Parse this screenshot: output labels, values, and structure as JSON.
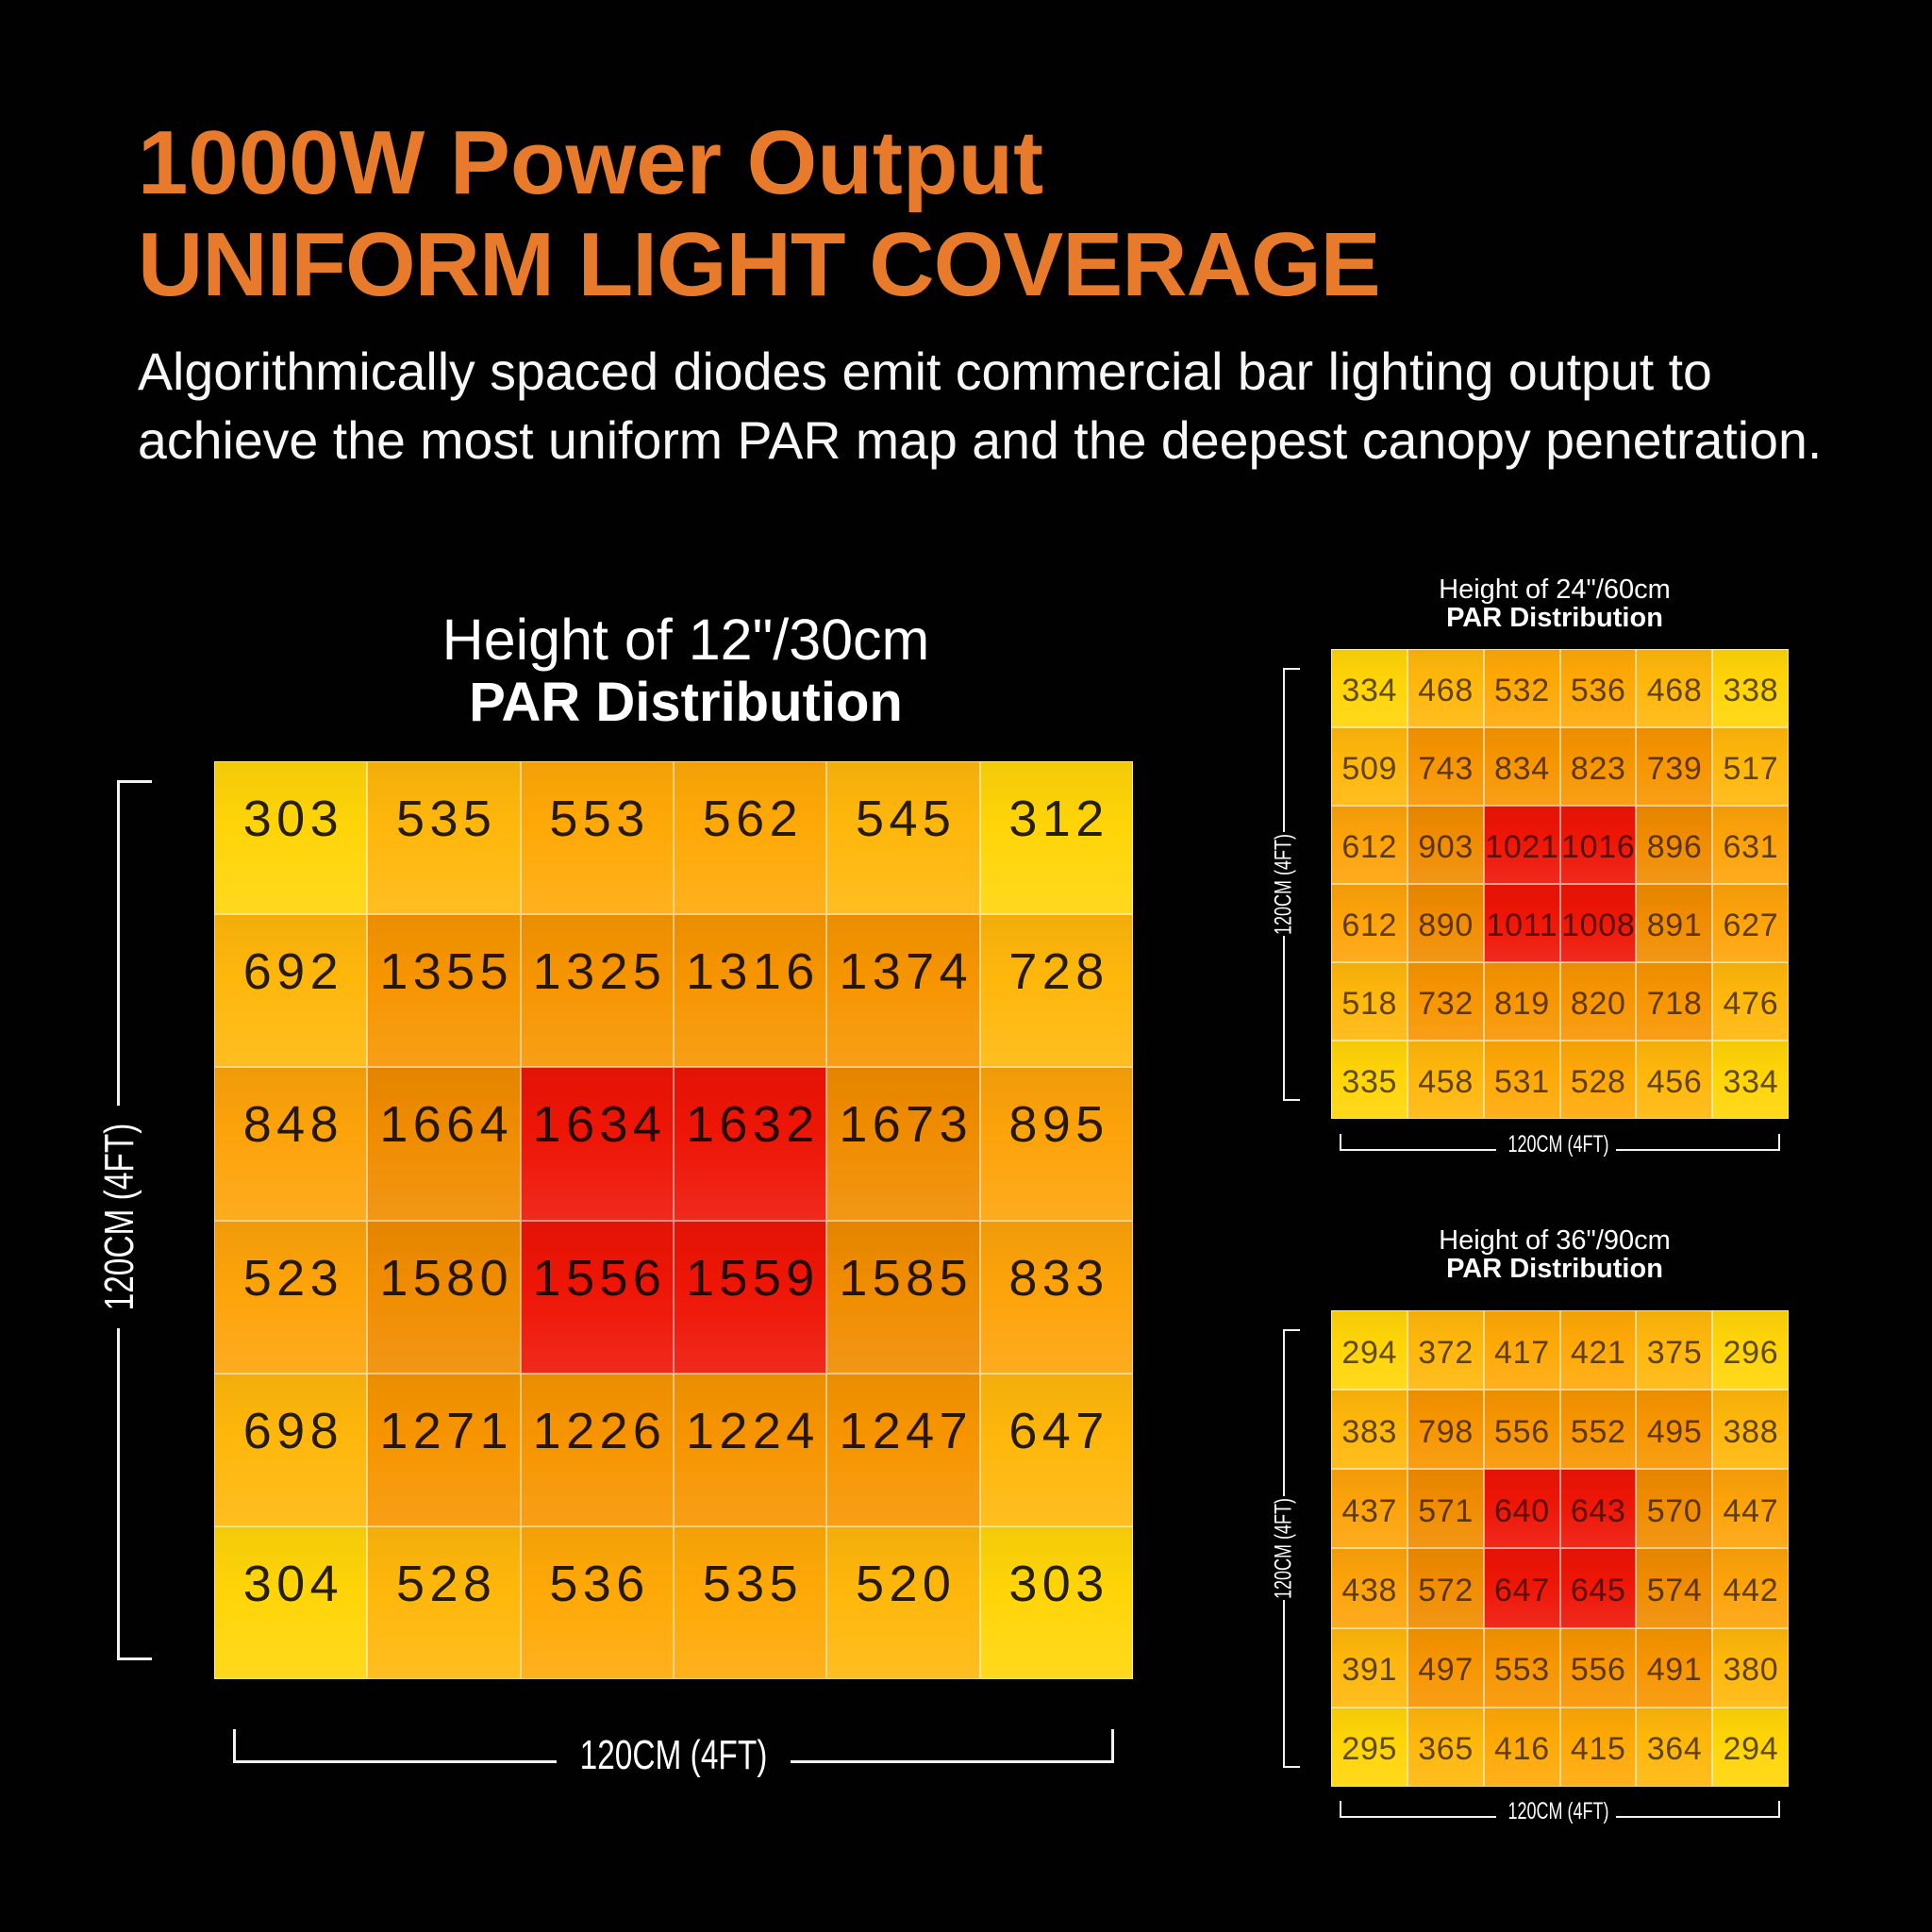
{
  "page": {
    "background": "#010101",
    "accent_orange": "#e87b2b"
  },
  "header": {
    "title_line1": "1000W Power Output",
    "title_line2": "UNIFORM LIGHT COVERAGE",
    "subtitle_line1": "Algorithmically spaced diodes emit commercial bar lighting output to",
    "subtitle_line2": "achieve the most uniform PAR map and the deepest canopy penetration."
  },
  "palette": {
    "l0": "#ffd508",
    "l1": "#ffb70b",
    "l2": "#ffa907",
    "l3": "#fda30a",
    "l4": "#f79500",
    "l5": "#f08c00",
    "red": "#ee1506"
  },
  "chart_data": [
    {
      "type": "heatmap",
      "title": "Height of 12\"/30cm",
      "subtitle": "PAR Distribution",
      "xlabel": "120CM (4FT)",
      "ylabel": "120CM (4FT)",
      "rows": 6,
      "cols": 6,
      "values": [
        [
          303,
          535,
          553,
          562,
          545,
          312
        ],
        [
          692,
          1355,
          1325,
          1316,
          1374,
          728
        ],
        [
          848,
          1664,
          1634,
          1632,
          1673,
          895
        ],
        [
          523,
          1580,
          1556,
          1559,
          1585,
          833
        ],
        [
          698,
          1271,
          1226,
          1224,
          1247,
          647
        ],
        [
          304,
          528,
          536,
          535,
          520,
          303
        ]
      ]
    },
    {
      "type": "heatmap",
      "title": "Height of 24\"/60cm",
      "subtitle": "PAR Distribution",
      "xlabel": "120CM (4FT)",
      "ylabel": "120CM (4FT)",
      "rows": 6,
      "cols": 6,
      "values": [
        [
          334,
          468,
          532,
          536,
          468,
          338
        ],
        [
          509,
          743,
          834,
          823,
          739,
          517
        ],
        [
          612,
          903,
          1021,
          1016,
          896,
          631
        ],
        [
          612,
          890,
          1011,
          1008,
          891,
          627
        ],
        [
          518,
          732,
          819,
          820,
          718,
          476
        ],
        [
          335,
          458,
          531,
          528,
          456,
          334
        ]
      ]
    },
    {
      "type": "heatmap",
      "title": "Height of 36\"/90cm",
      "subtitle": "PAR Distribution",
      "xlabel": "120CM (4FT)",
      "ylabel": "120CM (4FT)",
      "rows": 6,
      "cols": 6,
      "values": [
        [
          294,
          372,
          417,
          421,
          375,
          296
        ],
        [
          383,
          798,
          556,
          552,
          495,
          388
        ],
        [
          437,
          571,
          640,
          643,
          570,
          447
        ],
        [
          438,
          572,
          647,
          645,
          574,
          442
        ],
        [
          391,
          497,
          553,
          556,
          491,
          380
        ],
        [
          295,
          365,
          416,
          415,
          364,
          294
        ]
      ]
    }
  ]
}
